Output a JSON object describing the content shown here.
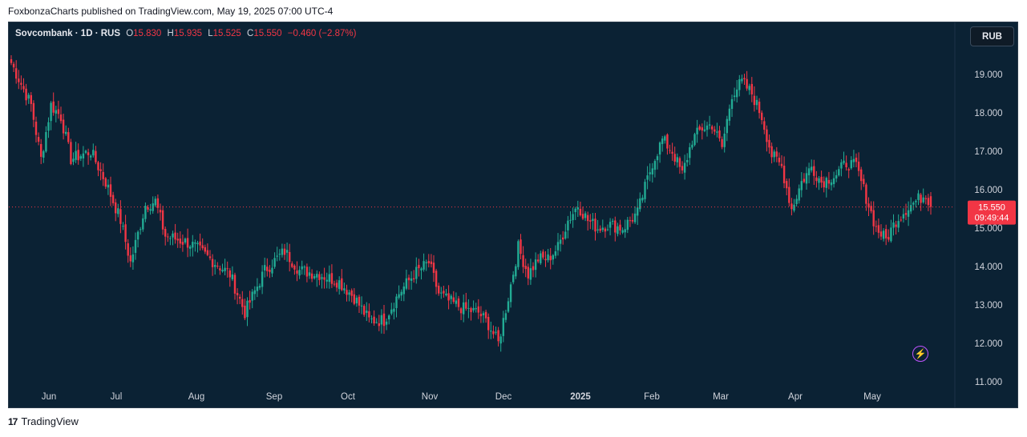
{
  "header": {
    "published": "FoxbonzaCharts published on TradingView.com, May 19, 2025 07:00 UTC-4"
  },
  "legend": {
    "symbol": "Sovcombank · 1D · RUS",
    "open_label": "O",
    "open": "15.830",
    "high_label": "H",
    "high": "15.935",
    "low_label": "L",
    "low": "15.525",
    "close_label": "C",
    "close": "15.550",
    "change": "−0.460 (−2.87%)"
  },
  "currency_button": "RUB",
  "price_label": {
    "price": "15.550",
    "countdown": "09:49:44"
  },
  "footer": {
    "brand": "TradingView",
    "logo_text": "17"
  },
  "colors": {
    "background": "#0b2234",
    "up": "#22ab94",
    "down": "#f23645",
    "text": "#d1d4dc",
    "alert": "#c053ff"
  },
  "icons": {
    "alert": "lightning-bolt-icon",
    "logo": "tradingview-logo-icon"
  },
  "chart_data": {
    "type": "candlestick",
    "x_ticks": [
      "Jun",
      "Jul",
      "Aug",
      "Sep",
      "Oct",
      "Nov",
      "Dec",
      "2025",
      "Feb",
      "Mar",
      "Apr",
      "May"
    ],
    "y_ticks": [
      "19.000",
      "18.000",
      "17.000",
      "16.000",
      "15.000",
      "14.000",
      "13.000",
      "12.000",
      "11.000"
    ],
    "ylim": [
      10.8,
      20.0
    ],
    "last_price": 15.55,
    "grid": false,
    "anchors": [
      [
        0,
        19.3
      ],
      [
        8,
        18.2
      ],
      [
        12,
        16.8
      ],
      [
        16,
        18.2
      ],
      [
        20,
        17.9
      ],
      [
        24,
        16.8
      ],
      [
        32,
        17.0
      ],
      [
        38,
        16.2
      ],
      [
        44,
        15.2
      ],
      [
        48,
        14.1
      ],
      [
        54,
        15.6
      ],
      [
        58,
        15.7
      ],
      [
        62,
        14.8
      ],
      [
        72,
        14.6
      ],
      [
        80,
        14.2
      ],
      [
        88,
        13.8
      ],
      [
        94,
        12.8
      ],
      [
        102,
        13.9
      ],
      [
        110,
        14.4
      ],
      [
        116,
        13.9
      ],
      [
        124,
        13.8
      ],
      [
        132,
        13.6
      ],
      [
        138,
        13.2
      ],
      [
        144,
        12.6
      ],
      [
        150,
        12.6
      ],
      [
        156,
        13.3
      ],
      [
        162,
        13.8
      ],
      [
        168,
        14.1
      ],
      [
        172,
        13.3
      ],
      [
        176,
        13.1
      ],
      [
        182,
        12.9
      ],
      [
        188,
        12.8
      ],
      [
        192,
        12.5
      ],
      [
        196,
        12.0
      ],
      [
        200,
        13.2
      ],
      [
        204,
        14.5
      ],
      [
        208,
        13.8
      ],
      [
        212,
        14.2
      ],
      [
        216,
        14.2
      ],
      [
        220,
        14.5
      ],
      [
        224,
        15.2
      ],
      [
        228,
        15.6
      ],
      [
        232,
        15.2
      ],
      [
        236,
        15.0
      ],
      [
        240,
        15.1
      ],
      [
        246,
        15.0
      ],
      [
        252,
        15.4
      ],
      [
        258,
        16.7
      ],
      [
        262,
        17.3
      ],
      [
        266,
        17.0
      ],
      [
        270,
        16.4
      ],
      [
        274,
        17.3
      ],
      [
        278,
        17.6
      ],
      [
        282,
        17.7
      ],
      [
        286,
        17.1
      ],
      [
        290,
        18.5
      ],
      [
        294,
        18.8
      ],
      [
        298,
        18.5
      ],
      [
        302,
        17.9
      ],
      [
        306,
        16.9
      ],
      [
        310,
        16.6
      ],
      [
        314,
        15.5
      ],
      [
        318,
        16.2
      ],
      [
        322,
        16.6
      ],
      [
        326,
        16.2
      ],
      [
        332,
        16.4
      ],
      [
        336,
        16.7
      ],
      [
        340,
        16.6
      ],
      [
        344,
        15.8
      ],
      [
        348,
        15.0
      ],
      [
        352,
        14.7
      ],
      [
        356,
        15.2
      ],
      [
        360,
        15.5
      ],
      [
        364,
        15.7
      ],
      [
        368,
        15.9
      ],
      [
        370,
        15.55
      ]
    ]
  }
}
